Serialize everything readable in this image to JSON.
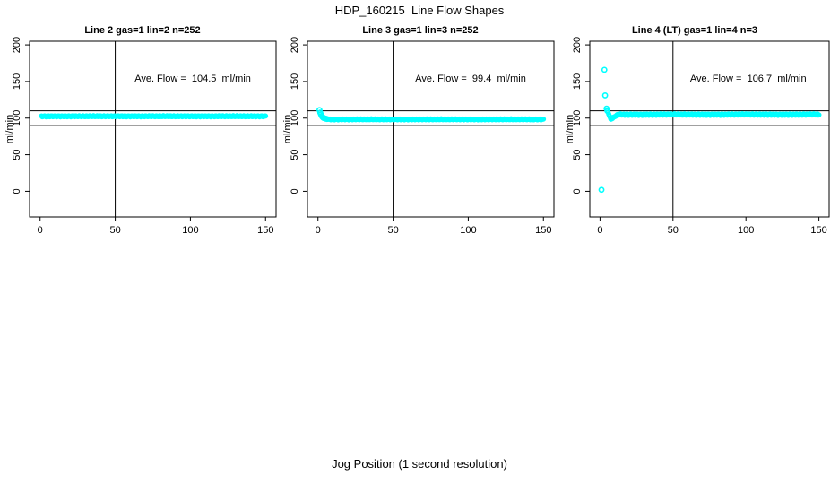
{
  "page": {
    "main_title": "HDP_160215  Line Flow Shapes",
    "bottom_label": "Jog Position (1 second resolution)",
    "background_color": "#ffffff",
    "line_color": "#000000"
  },
  "chart_data": {
    "type": "scatter",
    "point_color": "#00ffff",
    "xlabel": "Jog Position (1 second resolution)",
    "ylabel": "ml/min",
    "x_ticks": [
      0,
      50,
      100,
      150
    ],
    "y_ticks": [
      0,
      50,
      100,
      150,
      200
    ],
    "x_range": [
      -7,
      157
    ],
    "y_range": [
      -35,
      205
    ],
    "grid": false,
    "vline_x": 50,
    "hlines_y": [
      90,
      110
    ],
    "charts": [
      {
        "title": "Line 2 gas=1 lin=2 n=252",
        "line": 2,
        "gas": 1,
        "lin": 2,
        "n": 252,
        "ave_flow": 104.5,
        "annotation": "Ave. Flow =  104.5  ml/min",
        "points": [],
        "segments": [
          {
            "x_start": 1,
            "x_end": 150,
            "y_start": 102.5,
            "y_end": 102.5,
            "jitter": 0.8
          }
        ]
      },
      {
        "title": "Line 3 gas=1 lin=3 n=252",
        "line": 3,
        "gas": 1,
        "lin": 3,
        "n": 252,
        "ave_flow": 99.4,
        "annotation": "Ave. Flow =  99.4  ml/min",
        "points": [
          [
            1,
            111
          ],
          [
            1.5,
            107.5
          ],
          [
            2,
            105
          ],
          [
            2.5,
            103
          ],
          [
            3,
            101.5
          ],
          [
            3.5,
            100.5
          ],
          [
            4,
            100
          ],
          [
            5,
            99.3
          ],
          [
            6,
            98.8
          ]
        ],
        "segments": [
          {
            "x_start": 7,
            "x_end": 150,
            "y_start": 98.3,
            "y_end": 98.3,
            "jitter": 0.7
          }
        ]
      },
      {
        "title": "Line 4 (LT) gas=1 lin=4 n=3",
        "line": 4,
        "line_note": "LT",
        "gas": 1,
        "lin": 4,
        "n": 3,
        "ave_flow": 106.7,
        "annotation": "Ave. Flow =  106.7  ml/min",
        "points": [
          [
            1,
            2
          ],
          [
            3,
            166
          ],
          [
            3.5,
            131
          ],
          [
            4.5,
            113
          ],
          [
            5,
            110
          ]
        ],
        "segments": [
          {
            "x_start": 5,
            "x_end": 7.5,
            "y_start": 110,
            "y_end": 98.5,
            "jitter": 0.4
          },
          {
            "x_start": 7.5,
            "x_end": 12,
            "y_start": 98.5,
            "y_end": 104.5,
            "jitter": 0.5
          },
          {
            "x_start": 12,
            "x_end": 150,
            "y_start": 104.8,
            "y_end": 104.8,
            "jitter": 1.1
          }
        ]
      }
    ]
  }
}
